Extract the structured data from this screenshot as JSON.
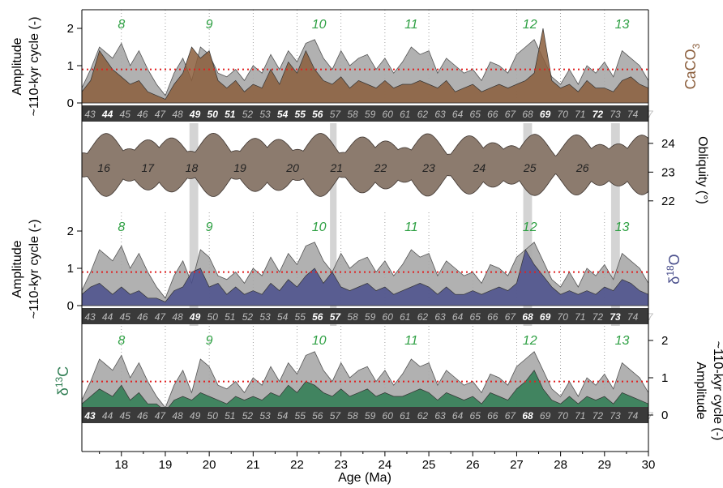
{
  "chart_data": {
    "type": "area",
    "xlabel": "Age (Ma)",
    "xlim": [
      17.1,
      30.0
    ],
    "xticks": [
      "18",
      "19",
      "20",
      "21",
      "22",
      "23",
      "24",
      "25",
      "26",
      "27",
      "28",
      "29",
      "30"
    ],
    "reference_line": 0.9,
    "colors": {
      "caco3": "#8b5e3c",
      "d18o": "#4a4f8c",
      "d13c": "#2e7d52",
      "gray": "#a9a9a9",
      "obliquity": "#8c7b6e",
      "red": "#e02020",
      "cycle_green": "#2ea043",
      "band_fill": "#3a3a3a",
      "highlight": "#d4d4d4"
    },
    "highlight_intervals": [
      [
        19.55,
        19.75
      ],
      [
        22.75,
        22.9
      ],
      [
        27.15,
        27.35
      ],
      [
        29.15,
        29.35
      ]
    ],
    "panels": [
      {
        "id": "caco3",
        "ylabel_1": "Amplitude",
        "ylabel_2": "~110-kyr cycle (-)",
        "series_label_base": "CaCO",
        "series_label_sub": "3",
        "ylim": [
          0,
          2.4
        ],
        "yticks": [
          "0",
          "1",
          "2"
        ]
      },
      {
        "id": "obliquity",
        "ylabel": "Obliquity (°)",
        "ylim": [
          21.6,
          24.7
        ],
        "yticks": [
          "22",
          "23",
          "24"
        ]
      },
      {
        "id": "d18o",
        "ylabel_1": "Amplitude",
        "ylabel_2": "~110-kyr cycle (-)",
        "series_label_base": "δ",
        "series_label_sup": "18",
        "series_label_end": "O",
        "ylim": [
          0,
          2.25
        ],
        "yticks": [
          "0",
          "1",
          "2"
        ]
      },
      {
        "id": "d13c",
        "ylabel_1": "Amplitude",
        "ylabel_2": "~110-kyr cycle (-)",
        "series_label_base": "δ",
        "series_label_sup": "13",
        "series_label_end": "C",
        "ylim": [
          -0.45,
          2.5
        ],
        "yticks": [
          "0",
          "1",
          "2"
        ]
      }
    ],
    "cycle_labels": {
      "values": [
        "8",
        "9",
        "10",
        "11",
        "12",
        "13"
      ],
      "x": [
        18.0,
        20.0,
        22.5,
        24.6,
        27.3,
        29.4
      ]
    },
    "obliquity_cycle_labels": {
      "values": [
        "16",
        "17",
        "18",
        "19",
        "20",
        "21",
        "22",
        "23",
        "24",
        "25",
        "26"
      ],
      "x": [
        17.6,
        18.6,
        19.6,
        20.7,
        21.9,
        22.9,
        23.9,
        25.0,
        26.15,
        27.3,
        28.5
      ]
    },
    "band_numbers": [
      "43",
      "44",
      "45",
      "46",
      "47",
      "48",
      "49",
      "50",
      "51",
      "52",
      "53",
      "54",
      "55",
      "56",
      "57",
      "58",
      "59",
      "60",
      "61",
      "62",
      "63",
      "64",
      "65",
      "66",
      "67",
      "68",
      "69",
      "70",
      "71",
      "72",
      "73",
      "74",
      "7"
    ],
    "band_bold": {
      "caco3": [
        "44",
        "49",
        "50",
        "51",
        "54",
        "55",
        "56",
        "69",
        "72"
      ],
      "d18o": [
        "49",
        "56",
        "57",
        "68",
        "69",
        "73"
      ],
      "d13c": [
        "43",
        "68"
      ]
    },
    "gray_envelope": {
      "x": [
        17.1,
        17.3,
        17.5,
        17.8,
        18.0,
        18.2,
        18.4,
        18.6,
        18.8,
        19.0,
        19.2,
        19.4,
        19.6,
        19.8,
        20.0,
        20.2,
        20.4,
        20.6,
        20.8,
        21.0,
        21.2,
        21.4,
        21.6,
        21.8,
        22.0,
        22.2,
        22.4,
        22.6,
        22.8,
        23.0,
        23.2,
        23.4,
        23.6,
        23.8,
        24.0,
        24.2,
        24.4,
        24.6,
        24.8,
        25.0,
        25.2,
        25.4,
        25.6,
        25.8,
        26.0,
        26.2,
        26.4,
        26.6,
        26.8,
        27.0,
        27.2,
        27.4,
        27.6,
        27.8,
        28.0,
        28.2,
        28.4,
        28.6,
        28.8,
        29.0,
        29.2,
        29.4,
        29.6,
        29.8,
        30.0
      ],
      "y": [
        0.4,
        0.9,
        1.5,
        1.2,
        1.6,
        1.0,
        1.4,
        0.9,
        0.5,
        0.2,
        0.8,
        1.2,
        0.6,
        1.5,
        1.3,
        0.8,
        0.7,
        0.9,
        0.6,
        1.0,
        0.8,
        1.3,
        0.9,
        1.4,
        1.1,
        1.6,
        1.7,
        1.2,
        0.9,
        1.4,
        1.0,
        1.2,
        1.3,
        0.9,
        1.2,
        0.8,
        1.1,
        1.5,
        1.3,
        1.4,
        0.8,
        1.2,
        1.0,
        0.8,
        0.9,
        0.6,
        1.1,
        1.0,
        0.8,
        1.3,
        1.5,
        1.7,
        1.2,
        0.7,
        0.5,
        0.9,
        0.5,
        1.0,
        0.8,
        1.1,
        0.7,
        1.4,
        1.2,
        1.0,
        0.6
      ]
    },
    "series": [
      {
        "id": "caco3",
        "x": [
          17.1,
          17.3,
          17.5,
          17.8,
          18.0,
          18.2,
          18.4,
          18.6,
          18.8,
          19.0,
          19.2,
          19.4,
          19.6,
          19.8,
          20.0,
          20.2,
          20.4,
          20.6,
          20.8,
          21.0,
          21.2,
          21.4,
          21.6,
          21.8,
          22.0,
          22.2,
          22.4,
          22.6,
          22.8,
          23.0,
          23.2,
          23.4,
          23.6,
          23.8,
          24.0,
          24.2,
          24.4,
          24.6,
          24.8,
          25.0,
          25.2,
          25.4,
          25.6,
          25.8,
          26.0,
          26.2,
          26.4,
          26.6,
          26.8,
          27.0,
          27.2,
          27.4,
          27.6,
          27.8,
          28.0,
          28.2,
          28.4,
          28.6,
          28.8,
          29.0,
          29.2,
          29.4,
          29.6,
          29.8,
          30.0
        ],
        "y": [
          0.3,
          0.6,
          1.4,
          0.9,
          0.7,
          0.5,
          0.6,
          0.3,
          0.2,
          0.1,
          0.5,
          0.8,
          1.5,
          1.2,
          1.4,
          0.6,
          0.4,
          0.6,
          0.3,
          0.5,
          0.4,
          0.9,
          0.5,
          1.1,
          0.8,
          1.4,
          0.9,
          0.6,
          0.5,
          0.7,
          0.4,
          0.6,
          0.5,
          0.4,
          0.6,
          0.4,
          0.5,
          0.5,
          0.6,
          0.5,
          0.4,
          0.6,
          0.3,
          0.4,
          0.5,
          0.3,
          0.4,
          0.5,
          0.4,
          0.5,
          0.6,
          0.8,
          2.0,
          0.6,
          0.4,
          0.5,
          0.3,
          0.6,
          0.4,
          0.4,
          0.3,
          0.6,
          0.7,
          0.5,
          0.4
        ]
      },
      {
        "id": "d18o",
        "x": [
          17.1,
          17.3,
          17.5,
          17.8,
          18.0,
          18.2,
          18.4,
          18.6,
          18.8,
          19.0,
          19.2,
          19.4,
          19.6,
          19.8,
          20.0,
          20.2,
          20.4,
          20.6,
          20.8,
          21.0,
          21.2,
          21.4,
          21.6,
          21.8,
          22.0,
          22.2,
          22.4,
          22.6,
          22.8,
          23.0,
          23.2,
          23.4,
          23.6,
          23.8,
          24.0,
          24.2,
          24.4,
          24.6,
          24.8,
          25.0,
          25.2,
          25.4,
          25.6,
          25.8,
          26.0,
          26.2,
          26.4,
          26.6,
          26.8,
          27.0,
          27.2,
          27.4,
          27.6,
          27.8,
          28.0,
          28.2,
          28.4,
          28.6,
          28.8,
          29.0,
          29.2,
          29.4,
          29.6,
          29.8,
          30.0
        ],
        "y": [
          0.3,
          0.5,
          0.6,
          0.3,
          0.5,
          0.3,
          0.4,
          0.2,
          0.2,
          0.1,
          0.4,
          0.5,
          0.9,
          1.0,
          0.5,
          0.6,
          0.3,
          0.5,
          0.3,
          0.4,
          0.3,
          0.6,
          0.4,
          0.7,
          0.5,
          0.8,
          1.0,
          0.6,
          0.9,
          0.5,
          0.4,
          0.5,
          0.6,
          0.4,
          0.5,
          0.3,
          0.4,
          0.5,
          0.6,
          0.5,
          0.3,
          0.5,
          0.3,
          0.3,
          0.4,
          0.3,
          0.4,
          0.5,
          0.4,
          0.6,
          1.5,
          1.1,
          0.8,
          0.5,
          0.3,
          0.4,
          0.3,
          0.4,
          0.3,
          0.5,
          0.4,
          0.7,
          0.6,
          0.4,
          0.3
        ]
      },
      {
        "id": "d13c",
        "x": [
          17.1,
          17.3,
          17.5,
          17.8,
          18.0,
          18.2,
          18.4,
          18.6,
          18.8,
          19.0,
          19.2,
          19.4,
          19.6,
          19.8,
          20.0,
          20.2,
          20.4,
          20.6,
          20.8,
          21.0,
          21.2,
          21.4,
          21.6,
          21.8,
          22.0,
          22.2,
          22.4,
          22.6,
          22.8,
          23.0,
          23.2,
          23.4,
          23.6,
          23.8,
          24.0,
          24.2,
          24.4,
          24.6,
          24.8,
          25.0,
          25.2,
          25.4,
          25.6,
          25.8,
          26.0,
          26.2,
          26.4,
          26.6,
          26.8,
          27.0,
          27.2,
          27.4,
          27.6,
          27.8,
          28.0,
          28.2,
          28.4,
          28.6,
          28.8,
          29.0,
          29.2,
          29.4,
          29.6,
          29.8,
          30.0
        ],
        "y": [
          0.3,
          0.5,
          0.7,
          0.5,
          0.8,
          0.4,
          0.6,
          0.3,
          0.3,
          0.1,
          0.4,
          0.5,
          0.4,
          0.6,
          0.5,
          0.4,
          0.3,
          0.5,
          0.4,
          0.5,
          0.4,
          0.6,
          0.5,
          0.8,
          0.6,
          0.9,
          0.8,
          0.6,
          0.5,
          0.7,
          0.5,
          0.6,
          0.7,
          0.5,
          0.6,
          0.5,
          0.5,
          0.6,
          0.7,
          0.6,
          0.4,
          0.6,
          0.5,
          0.4,
          0.5,
          0.3,
          0.6,
          0.5,
          0.4,
          0.7,
          0.9,
          1.2,
          0.7,
          0.4,
          0.3,
          0.5,
          0.3,
          0.5,
          0.4,
          0.5,
          0.3,
          0.6,
          0.5,
          0.4,
          0.3
        ]
      }
    ]
  }
}
